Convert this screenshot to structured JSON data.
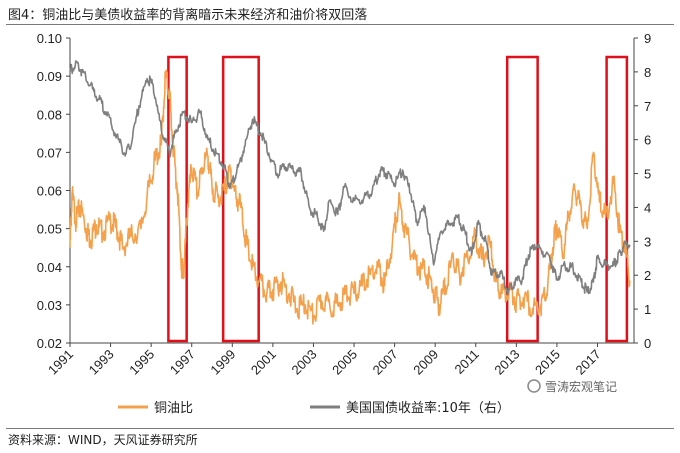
{
  "header": {
    "title": "图4：铜油比与美债收益率的背离暗示未来经济和油价将双回落"
  },
  "footer": {
    "source": "资料来源：WIND，天风证券研究所"
  },
  "watermark": "雪涛宏观笔记",
  "chart_data": {
    "type": "line",
    "title": "",
    "xlabel": "",
    "ylabel": "",
    "x_ticks": [
      "1991",
      "1993",
      "1995",
      "1997",
      "1999",
      "2001",
      "2003",
      "2005",
      "2007",
      "2009",
      "2011",
      "2013",
      "2015",
      "2017"
    ],
    "xlim": [
      1991,
      2018.8
    ],
    "ylim_left": [
      0.02,
      0.1
    ],
    "y_ticks_left": [
      "0.02",
      "0.03",
      "0.04",
      "0.05",
      "0.06",
      "0.07",
      "0.08",
      "0.09",
      "0.10"
    ],
    "ylim_right": [
      0,
      9
    ],
    "y_ticks_right": [
      "0",
      "1",
      "2",
      "3",
      "4",
      "5",
      "6",
      "7",
      "8",
      "9"
    ],
    "grid": false,
    "legend_position": "bottom",
    "series": [
      {
        "name": "铜油比",
        "axis": "left",
        "color": "#f5a04a",
        "points": [
          [
            1991.0,
            0.045
          ],
          [
            1991.1,
            0.059
          ],
          [
            1991.3,
            0.052
          ],
          [
            1991.5,
            0.056
          ],
          [
            1991.8,
            0.05
          ],
          [
            1992.0,
            0.047
          ],
          [
            1992.3,
            0.051
          ],
          [
            1992.6,
            0.049
          ],
          [
            1993.0,
            0.052
          ],
          [
            1993.3,
            0.05
          ],
          [
            1993.6,
            0.045
          ],
          [
            1994.0,
            0.048
          ],
          [
            1994.5,
            0.05
          ],
          [
            1994.9,
            0.061
          ],
          [
            1995.2,
            0.068
          ],
          [
            1995.5,
            0.072
          ],
          [
            1995.7,
            0.09
          ],
          [
            1995.9,
            0.086
          ],
          [
            1996.1,
            0.07
          ],
          [
            1996.3,
            0.06
          ],
          [
            1996.5,
            0.04
          ],
          [
            1996.6,
            0.038
          ],
          [
            1996.8,
            0.056
          ],
          [
            1997.0,
            0.066
          ],
          [
            1997.3,
            0.059
          ],
          [
            1997.5,
            0.066
          ],
          [
            1997.8,
            0.069
          ],
          [
            1998.0,
            0.061
          ],
          [
            1998.3,
            0.058
          ],
          [
            1998.6,
            0.06
          ],
          [
            1998.9,
            0.065
          ],
          [
            1999.1,
            0.06
          ],
          [
            1999.4,
            0.056
          ],
          [
            1999.7,
            0.046
          ],
          [
            2000.0,
            0.04
          ],
          [
            2000.3,
            0.036
          ],
          [
            2000.7,
            0.033
          ],
          [
            2001.0,
            0.034
          ],
          [
            2001.4,
            0.036
          ],
          [
            2001.8,
            0.033
          ],
          [
            2002.2,
            0.029
          ],
          [
            2002.6,
            0.03
          ],
          [
            2003.0,
            0.027
          ],
          [
            2003.4,
            0.031
          ],
          [
            2003.8,
            0.03
          ],
          [
            2004.2,
            0.03
          ],
          [
            2004.6,
            0.033
          ],
          [
            2005.0,
            0.033
          ],
          [
            2005.4,
            0.035
          ],
          [
            2005.8,
            0.038
          ],
          [
            2006.2,
            0.04
          ],
          [
            2006.5,
            0.035
          ],
          [
            2006.9,
            0.047
          ],
          [
            2007.2,
            0.057
          ],
          [
            2007.5,
            0.05
          ],
          [
            2007.9,
            0.043
          ],
          [
            2008.2,
            0.04
          ],
          [
            2008.6,
            0.038
          ],
          [
            2008.9,
            0.034
          ],
          [
            2009.2,
            0.03
          ],
          [
            2009.5,
            0.035
          ],
          [
            2009.9,
            0.042
          ],
          [
            2010.2,
            0.038
          ],
          [
            2010.6,
            0.043
          ],
          [
            2011.0,
            0.048
          ],
          [
            2011.3,
            0.042
          ],
          [
            2011.7,
            0.046
          ],
          [
            2012.0,
            0.036
          ],
          [
            2012.3,
            0.033
          ],
          [
            2012.7,
            0.034
          ],
          [
            2013.0,
            0.031
          ],
          [
            2013.4,
            0.032
          ],
          [
            2013.8,
            0.029
          ],
          [
            2014.2,
            0.03
          ],
          [
            2014.5,
            0.033
          ],
          [
            2014.8,
            0.045
          ],
          [
            2015.0,
            0.051
          ],
          [
            2015.3,
            0.043
          ],
          [
            2015.6,
            0.054
          ],
          [
            2015.9,
            0.06
          ],
          [
            2016.2,
            0.055
          ],
          [
            2016.5,
            0.05
          ],
          [
            2016.8,
            0.07
          ],
          [
            2017.1,
            0.057
          ],
          [
            2017.4,
            0.053
          ],
          [
            2017.8,
            0.062
          ],
          [
            2018.1,
            0.049
          ],
          [
            2018.4,
            0.045
          ],
          [
            2018.6,
            0.036
          ]
        ]
      },
      {
        "name": "美国国债收益率:10年（右）",
        "axis": "right",
        "color": "#7f7f7f",
        "points": [
          [
            1991.0,
            8.0
          ],
          [
            1991.3,
            8.3
          ],
          [
            1991.6,
            8.0
          ],
          [
            1992.0,
            7.6
          ],
          [
            1992.4,
            7.2
          ],
          [
            1992.8,
            6.8
          ],
          [
            1993.2,
            6.2
          ],
          [
            1993.7,
            5.6
          ],
          [
            1994.0,
            5.8
          ],
          [
            1994.4,
            7.0
          ],
          [
            1994.8,
            7.8
          ],
          [
            1995.1,
            7.6
          ],
          [
            1995.5,
            6.3
          ],
          [
            1995.9,
            5.6
          ],
          [
            1996.2,
            6.2
          ],
          [
            1996.6,
            6.8
          ],
          [
            1997.0,
            6.5
          ],
          [
            1997.4,
            6.8
          ],
          [
            1997.8,
            6.0
          ],
          [
            1998.2,
            5.6
          ],
          [
            1998.6,
            5.2
          ],
          [
            1998.9,
            4.6
          ],
          [
            1999.2,
            5.0
          ],
          [
            1999.6,
            5.8
          ],
          [
            2000.0,
            6.6
          ],
          [
            2000.4,
            6.2
          ],
          [
            2000.8,
            5.6
          ],
          [
            2001.2,
            5.0
          ],
          [
            2001.6,
            5.2
          ],
          [
            2002.0,
            5.1
          ],
          [
            2002.4,
            5.0
          ],
          [
            2002.8,
            4.0
          ],
          [
            2003.2,
            3.7
          ],
          [
            2003.5,
            3.3
          ],
          [
            2003.8,
            4.2
          ],
          [
            2004.2,
            3.8
          ],
          [
            2004.5,
            4.6
          ],
          [
            2005.0,
            4.2
          ],
          [
            2005.5,
            4.3
          ],
          [
            2005.9,
            4.5
          ],
          [
            2006.3,
            5.1
          ],
          [
            2006.6,
            5.0
          ],
          [
            2007.0,
            4.7
          ],
          [
            2007.4,
            5.1
          ],
          [
            2007.8,
            4.4
          ],
          [
            2008.1,
            3.6
          ],
          [
            2008.5,
            4.0
          ],
          [
            2008.9,
            2.4
          ],
          [
            2009.3,
            3.3
          ],
          [
            2009.7,
            3.5
          ],
          [
            2010.1,
            3.7
          ],
          [
            2010.5,
            3.2
          ],
          [
            2010.8,
            2.6
          ],
          [
            2011.1,
            3.5
          ],
          [
            2011.5,
            3.0
          ],
          [
            2011.8,
            2.0
          ],
          [
            2012.2,
            2.1
          ],
          [
            2012.6,
            1.5
          ],
          [
            2012.9,
            1.8
          ],
          [
            2013.3,
            1.9
          ],
          [
            2013.6,
            2.6
          ],
          [
            2013.9,
            2.9
          ],
          [
            2014.3,
            2.7
          ],
          [
            2014.7,
            2.4
          ],
          [
            2015.0,
            1.9
          ],
          [
            2015.4,
            2.3
          ],
          [
            2015.8,
            2.2
          ],
          [
            2016.2,
            1.8
          ],
          [
            2016.5,
            1.5
          ],
          [
            2016.8,
            1.8
          ],
          [
            2017.0,
            2.5
          ],
          [
            2017.4,
            2.3
          ],
          [
            2017.8,
            2.3
          ],
          [
            2018.0,
            2.5
          ],
          [
            2018.3,
            2.9
          ],
          [
            2018.6,
            2.9
          ]
        ]
      }
    ],
    "highlight_boxes": [
      {
        "x0": 1995.85,
        "x1": 1996.75
      },
      {
        "x0": 1998.55,
        "x1": 2000.3
      },
      {
        "x0": 2012.55,
        "x1": 2014.05
      },
      {
        "x0": 2017.45,
        "x1": 2018.45
      }
    ]
  }
}
